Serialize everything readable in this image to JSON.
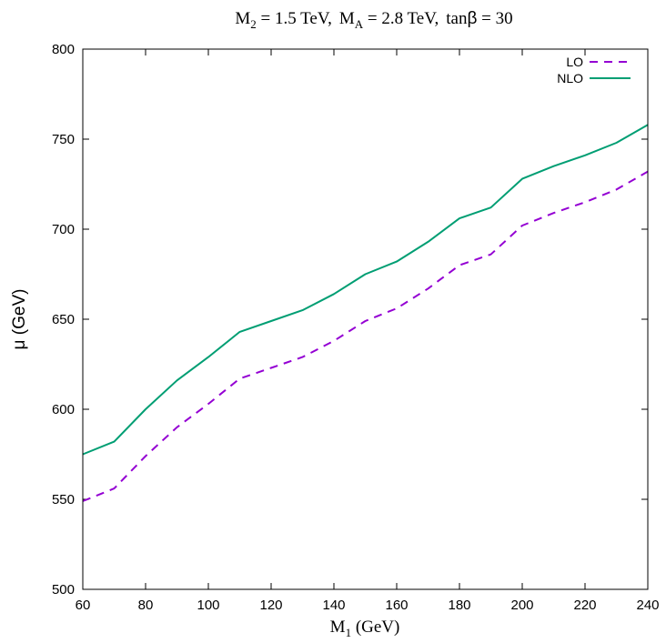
{
  "chart_data": {
    "type": "line",
    "title": {
      "m2_main": "M",
      "m2_sub": "2",
      "m2_rest": " = 1.5 TeV,",
      "ma_main": "M",
      "ma_sub": "A",
      "ma_rest": " = 2.8 TeV,",
      "tan_text": "tan",
      "beta": "β",
      "tan_rest": " = 30"
    },
    "xlabel": {
      "main": "M",
      "sub": "1",
      "rest": " (GeV)"
    },
    "ylabel": "μ (GeV)",
    "xlim": [
      60,
      240
    ],
    "ylim": [
      500,
      800
    ],
    "xticks": [
      60,
      80,
      100,
      120,
      140,
      160,
      180,
      200,
      220,
      240
    ],
    "yticks": [
      500,
      550,
      600,
      650,
      700,
      750,
      800
    ],
    "grid": false,
    "legend_position": "top-right",
    "series": [
      {
        "name": "LO",
        "color": "#9400d3",
        "style": "dashed",
        "x": [
          60,
          70,
          80,
          90,
          100,
          110,
          120,
          130,
          140,
          150,
          160,
          170,
          180,
          190,
          200,
          210,
          220,
          230,
          240
        ],
        "y": [
          549,
          556,
          574,
          590,
          603,
          617,
          623,
          629,
          638,
          649,
          656,
          667,
          680,
          686,
          702,
          709,
          715,
          722,
          732
        ]
      },
      {
        "name": "NLO",
        "color": "#009e73",
        "style": "solid",
        "x": [
          60,
          70,
          80,
          90,
          100,
          110,
          120,
          130,
          140,
          150,
          160,
          170,
          180,
          190,
          200,
          210,
          220,
          230,
          240
        ],
        "y": [
          575,
          582,
          600,
          616,
          629,
          643,
          649,
          655,
          664,
          675,
          682,
          693,
          706,
          712,
          728,
          735,
          741,
          748,
          758
        ]
      }
    ]
  }
}
